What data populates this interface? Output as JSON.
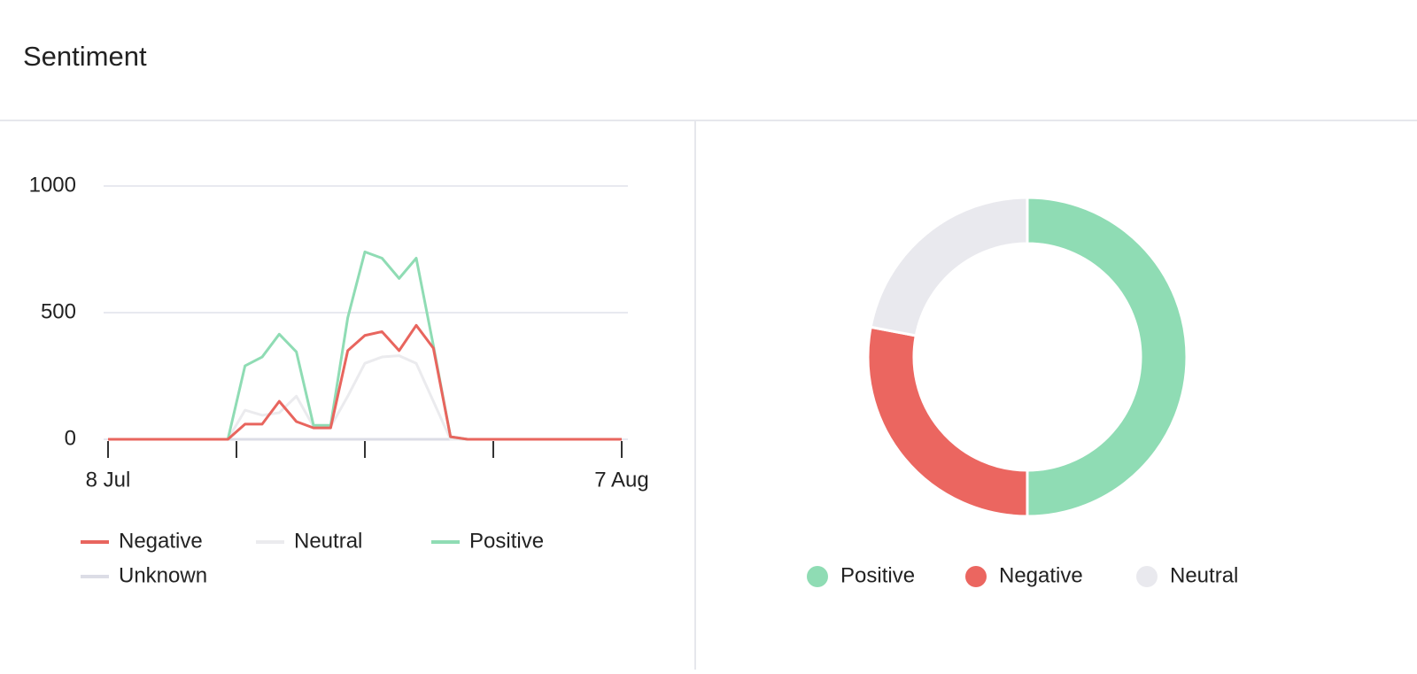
{
  "header": {
    "title": "Sentiment"
  },
  "chart_data": [
    {
      "type": "line",
      "categories": [
        "8 Jul",
        null,
        null,
        null,
        null,
        null,
        null,
        null,
        null,
        null,
        null,
        null,
        null,
        null,
        null,
        null,
        null,
        null,
        null,
        null,
        null,
        null,
        null,
        null,
        null,
        null,
        null,
        null,
        null,
        null,
        "7 Aug"
      ],
      "series": [
        {
          "name": "Negative",
          "color": "#e8655e",
          "values": [
            0,
            0,
            0,
            0,
            0,
            0,
            0,
            0,
            60,
            60,
            150,
            70,
            45,
            45,
            350,
            410,
            425,
            350,
            450,
            360,
            10,
            0,
            0,
            0,
            0,
            0,
            0,
            0,
            0,
            0,
            0
          ]
        },
        {
          "name": "Neutral",
          "color": "#ebebee",
          "values": [
            0,
            0,
            0,
            0,
            0,
            0,
            0,
            0,
            115,
            95,
            105,
            170,
            50,
            50,
            170,
            300,
            325,
            330,
            300,
            150,
            0,
            0,
            0,
            0,
            0,
            0,
            0,
            0,
            0,
            0,
            0
          ]
        },
        {
          "name": "Positive",
          "color": "#8fdcb4",
          "values": [
            0,
            0,
            0,
            0,
            0,
            0,
            0,
            0,
            290,
            325,
            415,
            345,
            55,
            55,
            480,
            740,
            715,
            635,
            715,
            370,
            10,
            0,
            0,
            0,
            0,
            0,
            0,
            0,
            0,
            0,
            0
          ]
        },
        {
          "name": "Unknown",
          "color": "#dcdde6",
          "values": [
            0,
            0,
            0,
            0,
            0,
            0,
            0,
            0,
            0,
            0,
            0,
            0,
            0,
            0,
            0,
            0,
            0,
            0,
            0,
            0,
            0,
            0,
            0,
            0,
            0,
            0,
            0,
            0,
            0,
            0,
            0
          ]
        }
      ],
      "ylim": [
        0,
        1000
      ],
      "yticks": [
        0,
        500,
        1000
      ],
      "grid": true
    },
    {
      "type": "pie",
      "categories": [
        "Positive",
        "Negative",
        "Neutral"
      ],
      "values": [
        50,
        28,
        22
      ],
      "colors": [
        "#8fdcb4",
        "#eb6660",
        "#e9e9ee"
      ]
    }
  ]
}
